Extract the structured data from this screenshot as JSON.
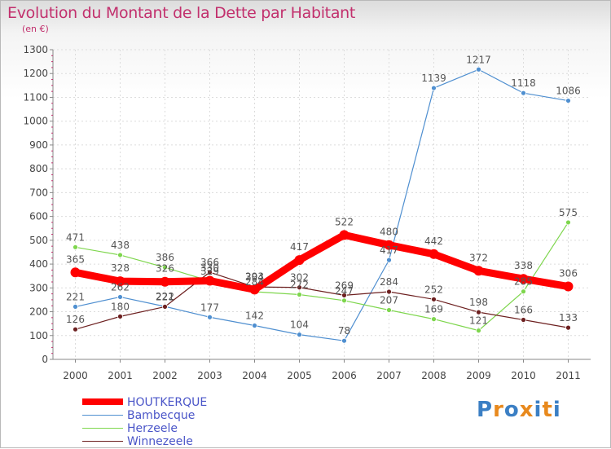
{
  "title": "Evolution du Montant de la Dette par Habitant",
  "subtitle": "(en €)",
  "logo": {
    "text": "Proxiti",
    "colors": [
      "#3b7fc4",
      "#e8891d",
      "#3b7fc4",
      "#e8891d",
      "#3b7fc4",
      "#e8891d",
      "#3b7fc4"
    ]
  },
  "chart_data": {
    "type": "line",
    "title": "Evolution du Montant de la Dette par Habitant",
    "subtitle": "(en €)",
    "xlabel": "",
    "ylabel": "",
    "ylim": [
      0,
      1300
    ],
    "yticks": [
      0,
      100,
      200,
      300,
      400,
      500,
      600,
      700,
      800,
      900,
      1000,
      1100,
      1200,
      1300
    ],
    "grid": true,
    "legend_placement": "bottom-left",
    "x": [
      "2000",
      "2001",
      "2002",
      "2003",
      "2004",
      "2005",
      "2006",
      "2007",
      "2008",
      "2009",
      "2010",
      "2011"
    ],
    "series": [
      {
        "name": "Bambecque",
        "color": "#4f8fd0",
        "values": [
          221,
          262,
          222,
          177,
          142,
          104,
          78,
          417,
          1139,
          1217,
          1118,
          1086
        ]
      },
      {
        "name": "Herzeele",
        "color": "#7ed64d",
        "values": [
          471,
          438,
          386,
          329,
          284,
          272,
          247,
          207,
          169,
          121,
          285,
          575
        ]
      },
      {
        "name": "Winnezeele",
        "color": "#6d2020",
        "values": [
          126,
          180,
          221,
          366,
          304,
          302,
          269,
          284,
          252,
          198,
          166,
          133
        ]
      },
      {
        "name": "HOUTKERQUE",
        "color": "#ff0000",
        "values": [
          365,
          328,
          326,
          330,
          293,
          417,
          522,
          480,
          442,
          372,
          338,
          306
        ]
      }
    ]
  }
}
